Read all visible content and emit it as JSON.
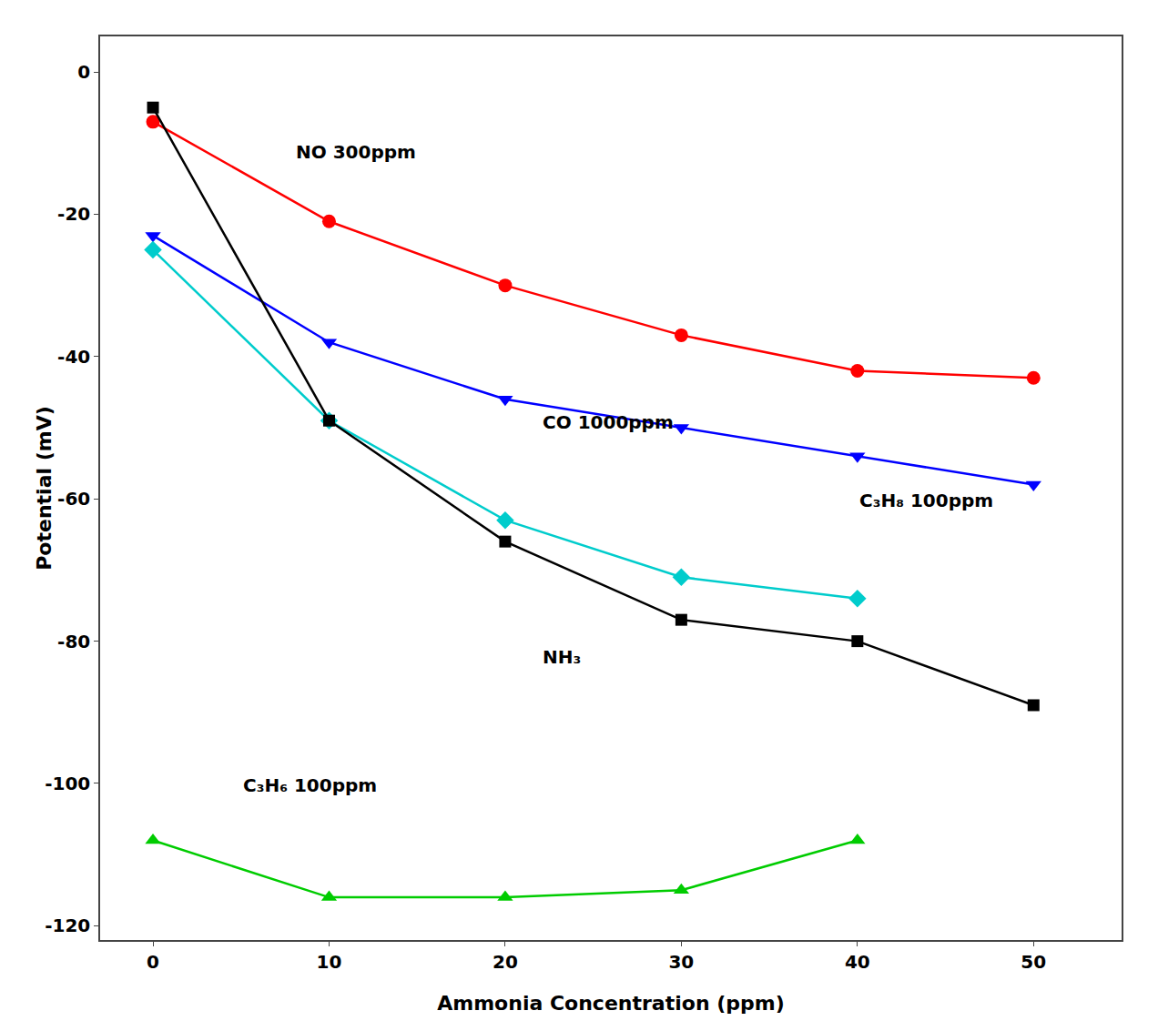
{
  "chart_data": {
    "type": "line",
    "xlabel": "Ammonia Concentration (ppm)",
    "ylabel": "Potential (mV)",
    "x": [
      0,
      10,
      20,
      30,
      40,
      50
    ],
    "series": [
      {
        "color": "#ff0000",
        "marker": "circle",
        "values": [
          -7,
          -21,
          -30,
          -37,
          -42,
          -43
        ]
      },
      {
        "color": "#0000ff",
        "marker": "triangle-down",
        "values": [
          -23,
          -38,
          -46,
          -50,
          -54,
          -58
        ]
      },
      {
        "color": "#00cccc",
        "marker": "diamond",
        "values": [
          -25,
          -49,
          -63,
          -71,
          -74,
          null
        ]
      },
      {
        "color": "#000000",
        "marker": "square",
        "values": [
          -5,
          -49,
          -66,
          -77,
          -80,
          -89
        ]
      },
      {
        "color": "#00cc00",
        "marker": "triangle-up",
        "values": [
          -108,
          -116,
          -116,
          -115,
          -108,
          null
        ]
      }
    ],
    "annotations": [
      {
        "text": "NO 300ppm",
        "x": 8,
        "y": -13
      },
      {
        "text": "CO 1000ppm",
        "x": 22,
        "y": -51
      },
      {
        "text": "C₃H₈ 100ppm",
        "x": 40,
        "y": -62
      },
      {
        "text": "NH₃",
        "x": 22,
        "y": -84
      },
      {
        "text": "C₃H₆ 100ppm",
        "x": 5,
        "y": -102
      }
    ],
    "xlim": [
      -3,
      55
    ],
    "ylim": [
      -122,
      5
    ],
    "xticks": [
      0,
      10,
      20,
      30,
      40,
      50
    ],
    "yticks": [
      0,
      -20,
      -40,
      -60,
      -80,
      -100,
      -120
    ],
    "grid": false
  }
}
